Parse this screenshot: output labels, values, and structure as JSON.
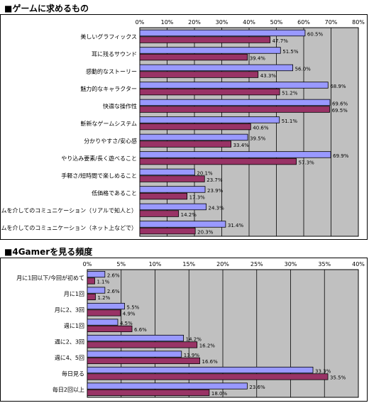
{
  "colors": {
    "plot_bg": "#c0c0c0",
    "series_1": "#9999ff",
    "series_2": "#993366",
    "grid": "#000000"
  },
  "chart_data": [
    {
      "type": "bar",
      "orientation": "horizontal",
      "title": "■ゲームに求めるもの",
      "tick_labels": [
        "0%",
        "10%",
        "20%",
        "30%",
        "40%",
        "50%",
        "60%",
        "70%",
        "80%"
      ],
      "xlim": [
        0,
        80
      ],
      "grid": true,
      "categories": [
        "美しいグラフィックス",
        "耳に残るサウンド",
        "感動的なストーリー",
        "魅力的なキャラクター",
        "快適な操作性",
        "斬新なゲームシステム",
        "分かりやすさ/安心感",
        "やり込み要素/長く遊べること",
        "手軽さ/短時間で楽しめること",
        "低価格であること",
        "ゲームを介してのコミュニケーション（リアルで知人と）",
        "ゲームを介してのコミュニケーション（ネット上などで）"
      ],
      "series": [
        {
          "values": [
            60.5,
            51.5,
            56.0,
            68.9,
            69.6,
            51.1,
            39.5,
            69.9,
            20.1,
            23.9,
            24.3,
            31.4
          ],
          "labels": [
            "60.5%",
            "51.5%",
            "56.0%",
            "68.9%",
            "69.6%",
            "51.1%",
            "39.5%",
            "69.9%",
            "20.1%",
            "23.9%",
            "24.3%",
            "31.4%"
          ]
        },
        {
          "values": [
            47.7,
            39.4,
            43.3,
            51.2,
            69.5,
            40.6,
            33.4,
            57.3,
            23.7,
            17.3,
            14.2,
            20.3
          ],
          "labels": [
            "47.7%",
            "39.4%",
            "43.3%",
            "51.2%",
            "69.5%",
            "40.6%",
            "33.4%",
            "57.3%",
            "23.7%",
            "17.3%",
            "14.2%",
            "20.3%"
          ]
        }
      ]
    },
    {
      "type": "bar",
      "orientation": "horizontal",
      "title": "■4Gamerを見る頻度",
      "tick_labels": [
        "0%",
        "5%",
        "10%",
        "15%",
        "20%",
        "25%",
        "30%",
        "35%",
        "40%"
      ],
      "xlim": [
        0,
        40
      ],
      "grid": true,
      "categories": [
        "月に1回以下/今回が初めて",
        "月に1回",
        "月に2、3回",
        "週に1回",
        "週に2、3回",
        "週に4、5回",
        "毎日見る",
        "毎日2回以上"
      ],
      "series": [
        {
          "values": [
            2.6,
            2.6,
            5.5,
            4.5,
            14.2,
            13.9,
            33.3,
            23.6
          ],
          "labels": [
            "2.6%",
            "2.6%",
            "5.5%",
            "4.5%",
            "14.2%",
            "13.9%",
            "33.3%",
            "23.6%"
          ]
        },
        {
          "values": [
            1.1,
            1.2,
            4.9,
            6.6,
            16.2,
            16.6,
            35.5,
            18.0
          ],
          "labels": [
            "1.1%",
            "1.2%",
            "4.9%",
            "6.6%",
            "16.2%",
            "16.6%",
            "35.5%",
            "18.0%"
          ]
        }
      ]
    }
  ]
}
